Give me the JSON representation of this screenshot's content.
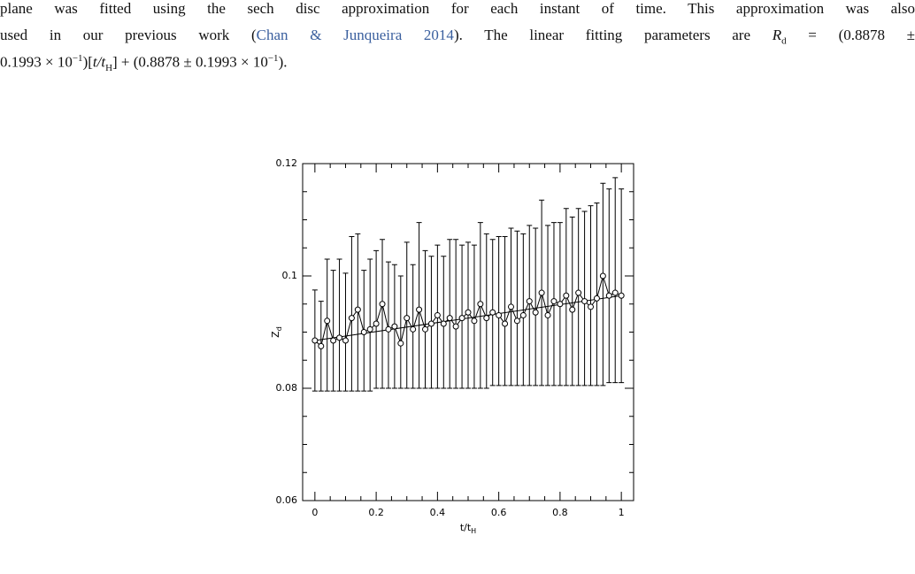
{
  "paragraph": {
    "lines": [
      [
        {
          "text": "plane was fitted using the sech disc approximation for each instant of time. This approximation was also"
        }
      ],
      [
        {
          "text": "used in our previous work  ("
        },
        {
          "text": "Chan & Junqueira 2014",
          "style": "link"
        },
        {
          "text": "). The linear fitting parameters are "
        },
        {
          "text": "R",
          "style": "italic"
        },
        {
          "text": "d",
          "style": "sub"
        },
        {
          "text": " = (0.8878 ±"
        }
      ],
      [
        {
          "text": "0.1993 × 10"
        },
        {
          "text": "−1",
          "style": "sup"
        },
        {
          "text": ")["
        },
        {
          "text": "t/t",
          "style": "italic"
        },
        {
          "text": "H",
          "style": "sub"
        },
        {
          "text": "] + (0.8878 ± 0.1993 × 10"
        },
        {
          "text": "−1",
          "style": "sup"
        },
        {
          "text": ")."
        }
      ]
    ]
  },
  "chart_data": {
    "type": "scatter",
    "xlabel": "t/t",
    "xlabel_sub": "H",
    "ylabel": "Z",
    "ylabel_sub": "d",
    "xlim": [
      -0.04,
      1.04
    ],
    "ylim": [
      0.06,
      0.12
    ],
    "xticks": [
      0,
      0.2,
      0.4,
      0.6,
      0.8,
      1
    ],
    "yticks": [
      0.06,
      0.08,
      0.1,
      0.12
    ],
    "xminorticks": [
      0.05,
      0.1,
      0.15,
      0.25,
      0.3,
      0.35,
      0.45,
      0.5,
      0.55,
      0.65,
      0.7,
      0.75,
      0.85,
      0.9,
      0.95
    ],
    "yminorticks": [
      0.065,
      0.07,
      0.075,
      0.085,
      0.09,
      0.095,
      0.105,
      0.11,
      0.115
    ],
    "color": "#000000",
    "x": [
      0,
      0.02,
      0.04,
      0.06,
      0.08,
      0.1,
      0.12,
      0.14,
      0.16,
      0.18,
      0.2,
      0.22,
      0.24,
      0.26,
      0.28,
      0.3,
      0.32,
      0.34,
      0.36,
      0.38,
      0.4,
      0.42,
      0.44,
      0.46,
      0.48,
      0.5,
      0.52,
      0.54,
      0.56,
      0.58,
      0.6,
      0.62,
      0.64,
      0.66,
      0.68,
      0.7,
      0.72,
      0.74,
      0.76,
      0.78,
      0.8,
      0.82,
      0.84,
      0.86,
      0.88,
      0.9,
      0.92,
      0.94,
      0.96,
      0.98,
      1
    ],
    "values": [
      0.0885,
      0.0875,
      0.092,
      0.0885,
      0.089,
      0.0885,
      0.0925,
      0.094,
      0.09,
      0.0905,
      0.0915,
      0.095,
      0.0905,
      0.091,
      0.088,
      0.0925,
      0.0905,
      0.094,
      0.0905,
      0.0915,
      0.093,
      0.0915,
      0.0925,
      0.091,
      0.0925,
      0.0935,
      0.092,
      0.095,
      0.0925,
      0.0935,
      0.093,
      0.0915,
      0.0945,
      0.092,
      0.093,
      0.0955,
      0.0935,
      0.097,
      0.093,
      0.0955,
      0.095,
      0.0965,
      0.094,
      0.097,
      0.0955,
      0.0945,
      0.096,
      0.1,
      0.0965,
      0.097,
      0.0965
    ],
    "err_high": [
      0.009,
      0.008,
      0.011,
      0.0125,
      0.014,
      0.012,
      0.0145,
      0.0135,
      0.011,
      0.0125,
      0.013,
      0.0115,
      0.012,
      0.011,
      0.012,
      0.0135,
      0.0115,
      0.0155,
      0.014,
      0.012,
      0.0125,
      0.012,
      0.014,
      0.0155,
      0.013,
      0.0125,
      0.0135,
      0.0145,
      0.015,
      0.013,
      0.014,
      0.0155,
      0.014,
      0.016,
      0.0145,
      0.0135,
      0.015,
      0.0165,
      0.016,
      0.014,
      0.0145,
      0.0155,
      0.0165,
      0.015,
      0.016,
      0.018,
      0.017,
      0.0165,
      0.019,
      0.0205,
      0.019
    ],
    "err_low": [
      0.009,
      0.008,
      0.0125,
      0.009,
      0.0095,
      0.009,
      0.013,
      0.0145,
      0.0105,
      0.011,
      0.0115,
      0.015,
      0.0105,
      0.011,
      0.008,
      0.0125,
      0.0105,
      0.014,
      0.0105,
      0.0115,
      0.013,
      0.0115,
      0.0125,
      0.011,
      0.0125,
      0.0135,
      0.012,
      0.015,
      0.0125,
      0.013,
      0.0125,
      0.011,
      0.014,
      0.0115,
      0.0125,
      0.015,
      0.013,
      0.0165,
      0.0125,
      0.015,
      0.0145,
      0.016,
      0.0135,
      0.0165,
      0.015,
      0.014,
      0.0155,
      0.0195,
      0.0155,
      0.016,
      0.0155
    ],
    "fit": {
      "x": [
        0,
        1
      ],
      "values": [
        0.0885,
        0.0965
      ]
    }
  }
}
